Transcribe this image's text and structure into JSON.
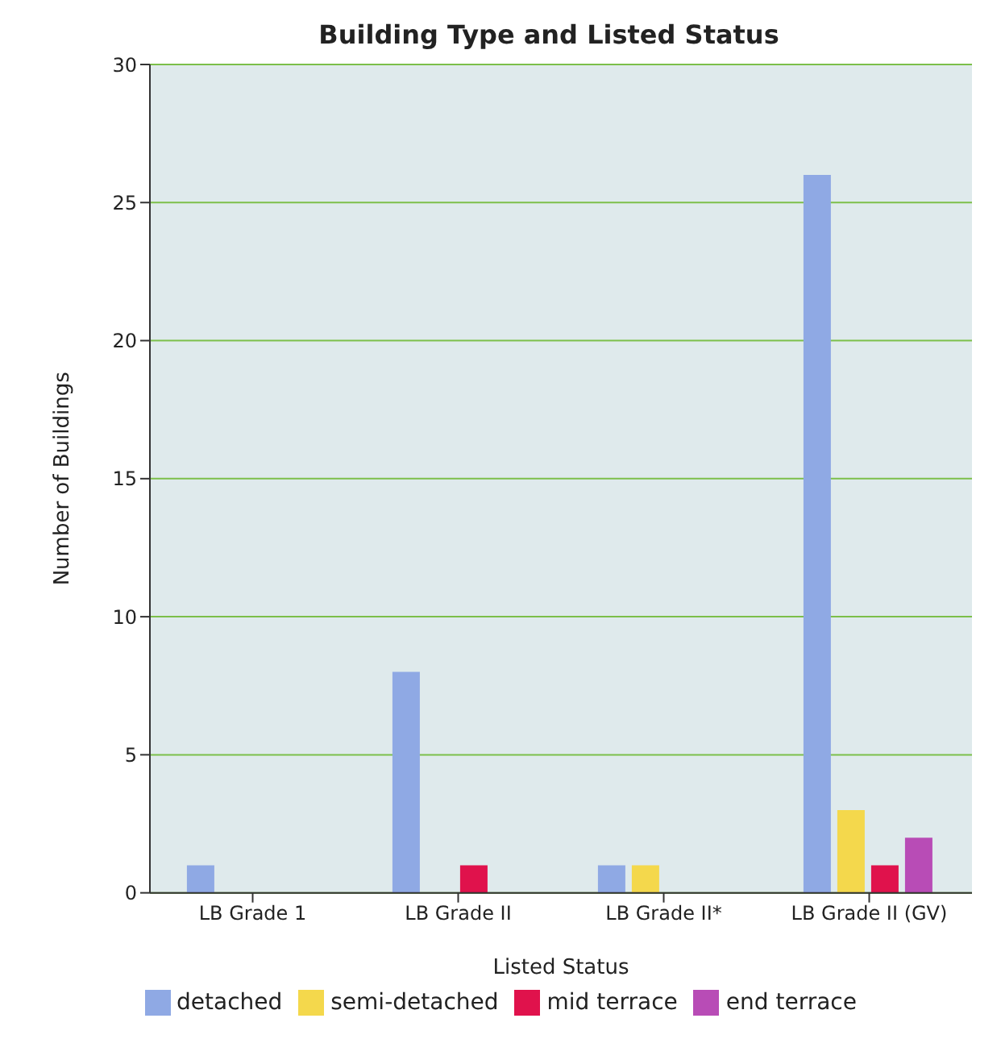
{
  "chart_data": {
    "type": "bar",
    "title": "Building Type and Listed Status",
    "xlabel": "Listed Status",
    "ylabel": "Number of Buildings",
    "categories": [
      "LB Grade 1",
      "LB Grade II",
      "LB Grade II*",
      "LB Grade II (GV)"
    ],
    "series": [
      {
        "name": "detached",
        "color": "#8fa9e4",
        "values": [
          1,
          8,
          1,
          26
        ]
      },
      {
        "name": "semi-detached",
        "color": "#f4d84c",
        "values": [
          0,
          0,
          1,
          3
        ]
      },
      {
        "name": "mid terrace",
        "color": "#e0124c",
        "values": [
          0,
          1,
          0,
          1
        ]
      },
      {
        "name": "end terrace",
        "color": "#b84cb6",
        "values": [
          0,
          0,
          0,
          2
        ]
      }
    ],
    "ylim": [
      0,
      30
    ],
    "yticks": [
      0,
      5,
      10,
      15,
      20,
      25,
      30
    ],
    "grid": "y",
    "legend": "bottom"
  }
}
